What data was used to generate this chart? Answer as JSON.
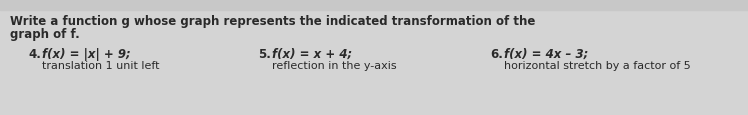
{
  "bg_color": "#d4d4d4",
  "title_line1": "Write a function g whose graph represents the indicated transformation of the",
  "title_line2": "graph of f.",
  "item4_num": "4.",
  "item4_func": "f(x) = |x| + 9;",
  "item4_trans": "translation 1 unit left",
  "item5_num": "5.",
  "item5_func": "f(x) = x + 4;",
  "item5_trans": "reflection in the y-axis",
  "item6_num": "6.",
  "item6_func": "f(x) = 4x – 3;",
  "item6_trans": "horizontal stretch by a factor of 5",
  "text_color": "#2a2a2a",
  "title_fontsize": 8.5,
  "item_num_fontsize": 8.5,
  "item_func_fontsize": 8.5,
  "item_trans_fontsize": 8.0,
  "top_bar_color": "#b0b0b0",
  "top_bar_height": 0.12
}
